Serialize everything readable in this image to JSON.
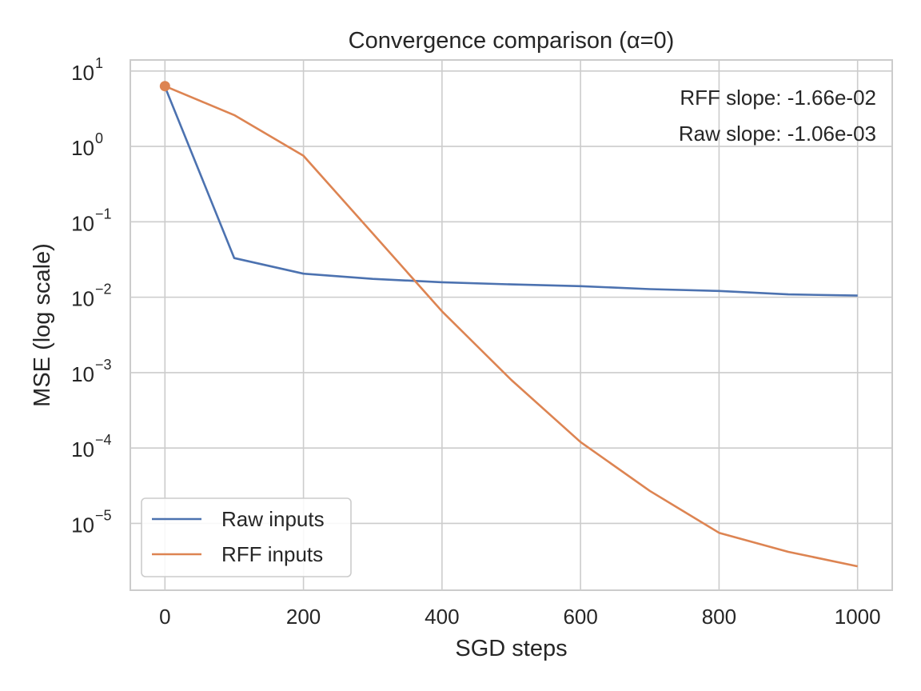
{
  "chart_data": {
    "type": "line",
    "title": "Convergence comparison (α=0)",
    "xlabel": "SGD steps",
    "ylabel": "MSE (log scale)",
    "yscale": "log",
    "grid": true,
    "legend_position": "lower-left",
    "xlim": [
      -50,
      1050
    ],
    "ylim": [
      1.3e-06,
      14
    ],
    "x_ticks": [
      0,
      200,
      400,
      600,
      800,
      1000
    ],
    "x_tick_labels": [
      "0",
      "200",
      "400",
      "600",
      "800",
      "1000"
    ],
    "y_ticks": [
      1e-05,
      0.0001,
      0.001,
      0.01,
      0.1,
      1,
      10
    ],
    "y_tick_labels": [
      {
        "base": "10",
        "exp": "−5"
      },
      {
        "base": "10",
        "exp": "−4"
      },
      {
        "base": "10",
        "exp": "−3"
      },
      {
        "base": "10",
        "exp": "−2"
      },
      {
        "base": "10",
        "exp": "−1"
      },
      {
        "base": "10",
        "exp": "0"
      },
      {
        "base": "10",
        "exp": "1"
      }
    ],
    "x": [
      0,
      100,
      200,
      300,
      400,
      500,
      600,
      700,
      800,
      900,
      1000
    ],
    "series": [
      {
        "name": "Raw inputs",
        "color": "#4c72b0",
        "values": [
          6.2,
          0.033,
          0.0205,
          0.0175,
          0.0158,
          0.0148,
          0.014,
          0.0128,
          0.0121,
          0.0109,
          0.0105
        ]
      },
      {
        "name": "RFF inputs",
        "color": "#dd8452",
        "values": [
          6.3,
          2.6,
          0.75,
          0.07,
          0.0065,
          0.0008,
          0.00012,
          2.7e-05,
          7.5e-06,
          4.2e-06,
          2.7e-06
        ]
      }
    ],
    "highlight_point": {
      "x": 0,
      "y": 6.3,
      "color": "#dd8452"
    },
    "annotations": [
      "RFF slope: -1.66e-02",
      "Raw slope: -1.06e-03"
    ]
  }
}
